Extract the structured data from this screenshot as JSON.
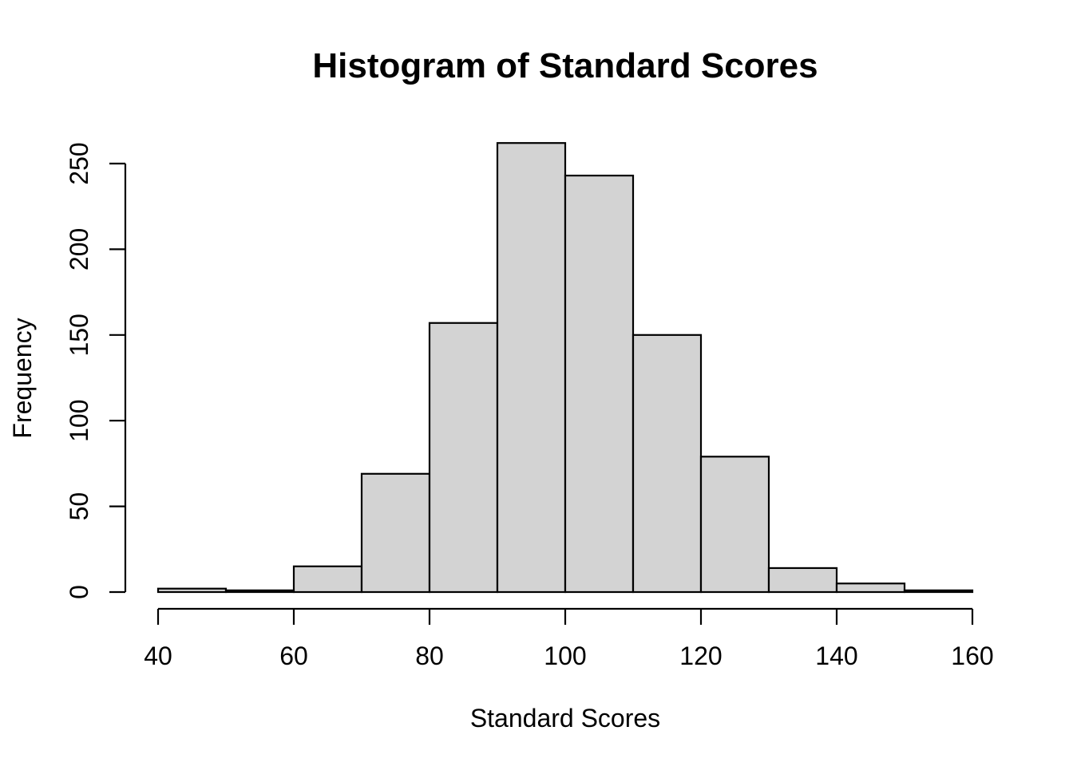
{
  "page": {
    "background": "#ffffff"
  },
  "chart_data": {
    "type": "bar",
    "subtype": "histogram",
    "title": "Histogram of Standard Scores",
    "xlabel": "Standard Scores",
    "ylabel": "Frequency",
    "bins": [
      {
        "from": 40,
        "to": 50,
        "frequency": 2
      },
      {
        "from": 50,
        "to": 60,
        "frequency": 1
      },
      {
        "from": 60,
        "to": 70,
        "frequency": 15
      },
      {
        "from": 70,
        "to": 80,
        "frequency": 69
      },
      {
        "from": 80,
        "to": 90,
        "frequency": 157
      },
      {
        "from": 90,
        "to": 100,
        "frequency": 262
      },
      {
        "from": 100,
        "to": 110,
        "frequency": 243
      },
      {
        "from": 110,
        "to": 120,
        "frequency": 150
      },
      {
        "from": 120,
        "to": 130,
        "frequency": 79
      },
      {
        "from": 130,
        "to": 140,
        "frequency": 14
      },
      {
        "from": 140,
        "to": 150,
        "frequency": 5
      },
      {
        "from": 150,
        "to": 160,
        "frequency": 1
      }
    ],
    "x_ticks": [
      40,
      60,
      80,
      100,
      120,
      140,
      160
    ],
    "y_ticks": [
      0,
      50,
      100,
      150,
      200,
      250
    ],
    "xlim": [
      40,
      160
    ],
    "ylim": [
      0,
      250
    ],
    "grid": false,
    "legend_position": "none",
    "bar_fill": "#d3d3d3",
    "bar_stroke": "#000000",
    "axis_color": "#000000",
    "text_color": "#000000",
    "background": "#ffffff"
  }
}
